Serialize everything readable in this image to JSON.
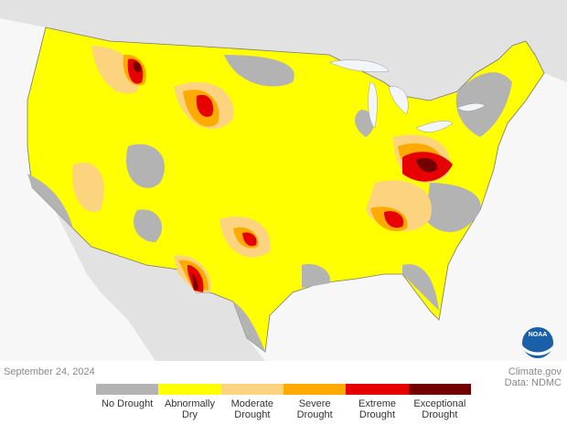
{
  "date": "September 24, 2024",
  "credit": "Climate.gov",
  "source": "Data: NDMC",
  "logo": "NOAA",
  "legend": {
    "items": [
      {
        "label": "No Drought",
        "color": "#b3b3b3"
      },
      {
        "label": "Abnormally Dry",
        "color": "#ffff00"
      },
      {
        "label": "Moderate Drought",
        "color": "#fcd37f"
      },
      {
        "label": "Severe Drought",
        "color": "#ffaa00"
      },
      {
        "label": "Extreme Drought",
        "color": "#e60000"
      },
      {
        "label": "Exceptional Drought",
        "color": "#730000"
      }
    ]
  }
}
